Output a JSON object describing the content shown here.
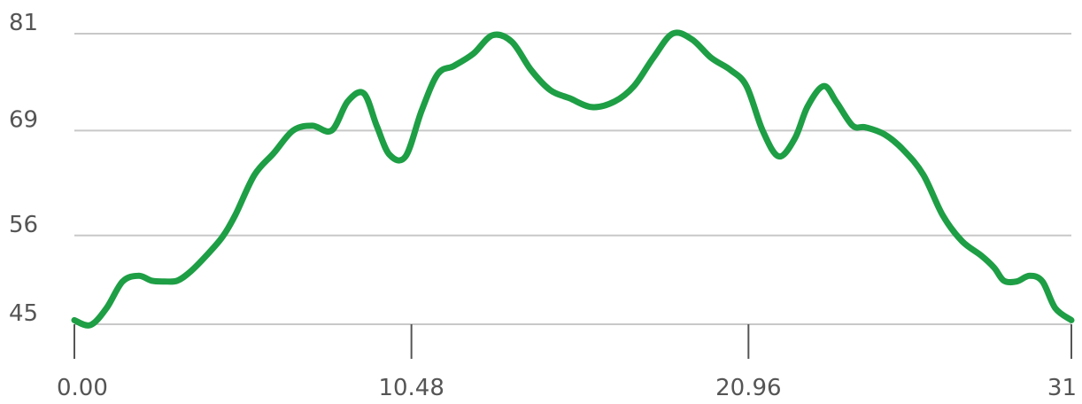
{
  "chart_data": {
    "type": "line",
    "xlim": [
      0,
      31
    ],
    "ylim": [
      45,
      81
    ],
    "yticks": [
      "81",
      "69",
      "56",
      "45"
    ],
    "ytick_values": [
      81,
      69,
      56,
      45
    ],
    "xticks": [
      "0.00",
      "10.48",
      "20.96",
      "31"
    ],
    "xtick_values": [
      0,
      10.48,
      20.96,
      31
    ],
    "grid": true,
    "line_color": "#1e9e45",
    "series": [
      {
        "x": [
          0,
          0.5,
          1,
          1.5,
          2,
          2.4,
          2.8,
          3.2,
          3.6,
          4.1,
          4.6,
          5,
          5.6,
          6.2,
          6.8,
          7.4,
          8,
          8.5,
          9,
          9.4,
          9.8,
          10.3,
          10.8,
          11.3,
          11.8,
          12.4,
          13,
          13.6,
          14.2,
          14.8,
          15.4,
          16.1,
          16.8,
          17.4,
          18,
          18.6,
          19.2,
          19.8,
          20.4,
          20.9,
          21.4,
          21.9,
          22.4,
          22.8,
          23.3,
          23.7,
          24.2,
          24.6,
          25.2,
          25.8,
          26.4,
          27,
          27.6,
          28.2,
          28.6,
          28.9,
          29.3,
          29.7,
          30.1,
          30.5,
          31
        ],
        "y": [
          45.5,
          44.9,
          47,
          50.3,
          51,
          50.4,
          50.3,
          50.4,
          51.5,
          53.5,
          55.8,
          58.5,
          63.5,
          66.2,
          69,
          69.6,
          69,
          72.6,
          73.6,
          69.6,
          66,
          65.8,
          71.5,
          76,
          77,
          78.5,
          80.8,
          80,
          76.5,
          74,
          73,
          71.9,
          72.6,
          74.5,
          78,
          81,
          80.3,
          78,
          76.5,
          74.5,
          69,
          65.8,
          68,
          72,
          74.5,
          72.5,
          69.6,
          69.4,
          68.5,
          66.5,
          63.5,
          58.5,
          55.3,
          53.5,
          52,
          50.4,
          50.3,
          51,
          50.3,
          47,
          45.5
        ]
      }
    ]
  }
}
